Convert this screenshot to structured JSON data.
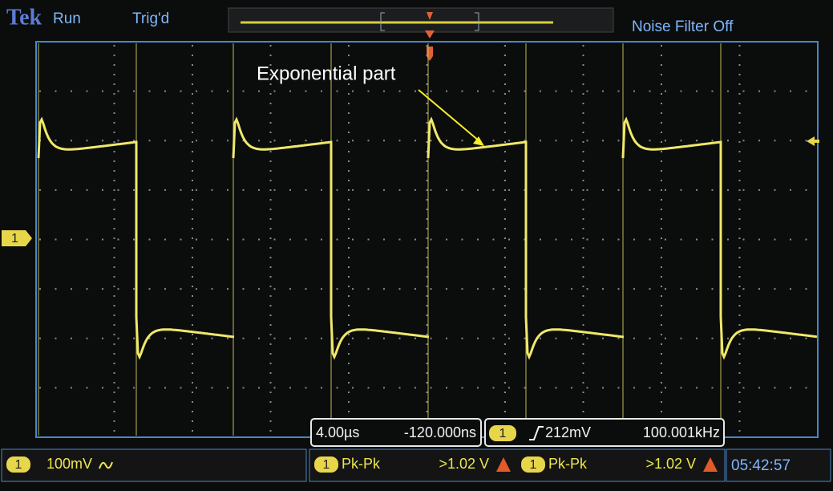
{
  "header": {
    "brand": "Tek",
    "status": "Run",
    "trigger_state": "Trig'd",
    "noise_filter": "Noise Filter Off"
  },
  "annotation": "Exponential part",
  "channel_marker": "1",
  "horizontal": {
    "scale": "4.00µs",
    "position": "-120.000ns"
  },
  "trigger": {
    "channel": "1",
    "level": "212mV",
    "frequency": "100.001kHz"
  },
  "channel1": {
    "label": "1",
    "scale": "100mV"
  },
  "measurements": [
    {
      "channel": "1",
      "name": "Pk-Pk",
      "value": ">1.02 V"
    },
    {
      "channel": "1",
      "name": "Pk-Pk",
      "value": ">1.02 V"
    }
  ],
  "clock": "05:42:57"
}
